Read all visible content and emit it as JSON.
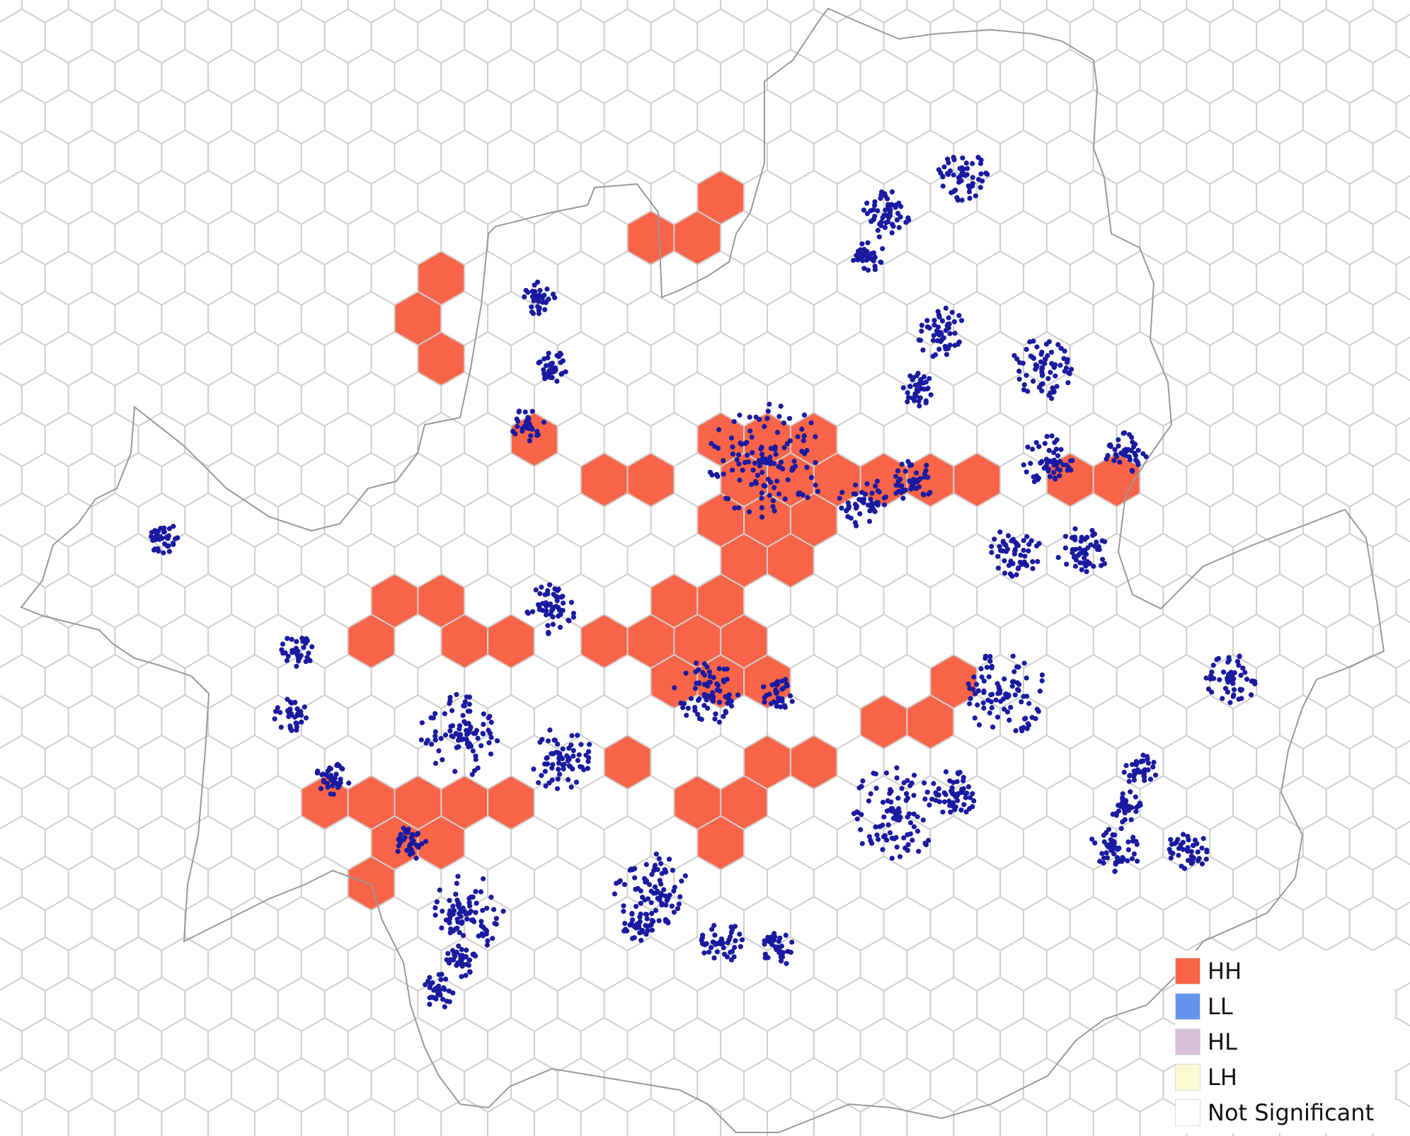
{
  "map": {
    "hex_fill_default": "#ffffff",
    "hex_stroke": "#cfcfcf",
    "boundary_color": "#999999",
    "point_color": "#1a1aa0",
    "hh_color": "#fa6448"
  },
  "legend": {
    "items": [
      {
        "label": "HH",
        "color": "#fa6448"
      },
      {
        "label": "LL",
        "color": "#6495ed"
      },
      {
        "label": "HL",
        "color": "#d8bfd8"
      },
      {
        "label": "LH",
        "color": "#fafad2"
      },
      {
        "label": "Not Significant",
        "color": "#ffffff"
      }
    ]
  }
}
